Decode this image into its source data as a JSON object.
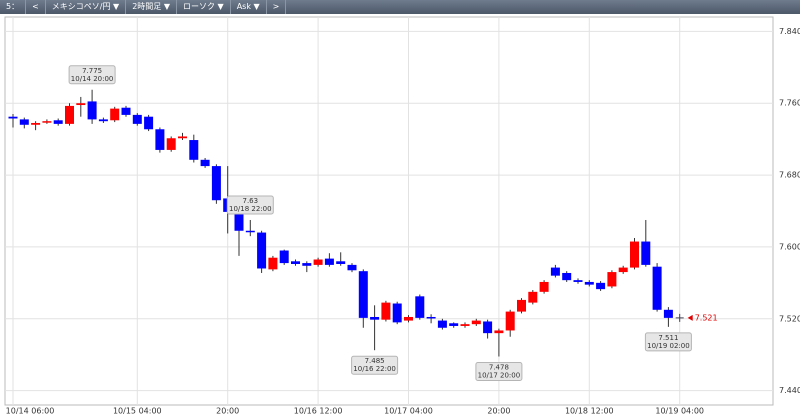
{
  "toolbar": {
    "items": [
      "5：",
      "<",
      "メキシコペソ/円 ▼",
      "2時間足 ▼",
      "ローソク ▼",
      "Ask ▼",
      ">"
    ]
  },
  "chart_data": {
    "type": "candlestick",
    "categories": [
      "10/14 06:00",
      null,
      null,
      null,
      null,
      null,
      null,
      null,
      null,
      null,
      null,
      "10/15 04:00",
      null,
      null,
      null,
      null,
      null,
      null,
      null,
      "20:00",
      null,
      null,
      null,
      null,
      null,
      null,
      null,
      "10/16 12:00",
      null,
      null,
      null,
      null,
      null,
      null,
      null,
      "10/17 04:00",
      null,
      null,
      null,
      null,
      null,
      null,
      null,
      "20:00",
      null,
      null,
      null,
      null,
      null,
      null,
      null,
      "10/18 12:00",
      null,
      null,
      null,
      null,
      null,
      null,
      null,
      "10/19 04:00"
    ],
    "open": [
      7.745,
      7.742,
      7.736,
      7.739,
      7.741,
      7.737,
      7.758,
      7.762,
      7.742,
      7.741,
      7.755,
      7.747,
      7.745,
      7.731,
      7.708,
      7.721,
      7.719,
      7.697,
      7.69,
      7.654,
      7.638,
      7.618,
      7.616,
      7.575,
      7.596,
      7.584,
      7.582,
      7.58,
      7.587,
      7.584,
      7.58,
      7.573,
      7.522,
      7.519,
      7.537,
      7.518,
      7.545,
      7.522,
      7.518,
      7.515,
      7.512,
      7.514,
      7.517,
      7.504,
      7.507,
      7.528,
      7.538,
      7.55,
      7.577,
      7.571,
      7.563,
      7.561,
      7.56,
      7.556,
      7.572,
      7.577,
      7.606,
      7.578,
      7.53,
      null
    ],
    "high": [
      7.748,
      7.744,
      7.74,
      7.742,
      7.743,
      7.76,
      7.767,
      7.775,
      7.744,
      7.756,
      7.757,
      7.749,
      7.747,
      7.733,
      7.723,
      7.727,
      7.725,
      7.699,
      7.692,
      7.69,
      7.644,
      7.63,
      7.618,
      7.59,
      7.597,
      7.586,
      7.584,
      7.588,
      7.593,
      7.594,
      7.582,
      7.575,
      7.535,
      7.54,
      7.539,
      7.524,
      7.547,
      7.525,
      7.52,
      7.516,
      7.516,
      7.52,
      7.519,
      7.509,
      7.53,
      7.543,
      7.552,
      7.563,
      7.58,
      7.573,
      7.565,
      7.563,
      7.562,
      7.574,
      7.579,
      7.61,
      7.63,
      7.582,
      7.533,
      null
    ],
    "low": [
      7.733,
      7.732,
      7.73,
      7.737,
      7.735,
      7.735,
      7.745,
      7.737,
      7.738,
      7.739,
      7.745,
      7.735,
      7.729,
      7.705,
      7.706,
      7.719,
      7.694,
      7.688,
      7.648,
      7.615,
      7.59,
      7.612,
      7.571,
      7.573,
      7.58,
      7.579,
      7.572,
      7.578,
      7.578,
      7.579,
      7.572,
      7.51,
      7.485,
      7.517,
      7.514,
      7.516,
      7.519,
      7.515,
      7.508,
      7.51,
      7.51,
      7.512,
      7.498,
      7.478,
      7.5,
      7.526,
      7.536,
      7.548,
      7.566,
      7.561,
      7.559,
      7.556,
      7.551,
      7.554,
      7.57,
      7.575,
      7.578,
      7.528,
      7.511,
      null
    ],
    "close": [
      7.743,
      7.736,
      7.738,
      7.74,
      7.737,
      7.757,
      7.76,
      7.742,
      7.74,
      7.754,
      7.747,
      7.737,
      7.731,
      7.708,
      7.721,
      7.723,
      7.697,
      7.69,
      7.652,
      7.639,
      7.618,
      7.617,
      7.576,
      7.588,
      7.582,
      7.581,
      7.579,
      7.586,
      7.58,
      7.581,
      7.574,
      7.521,
      7.519,
      7.538,
      7.516,
      7.522,
      7.521,
      7.521,
      7.51,
      7.512,
      7.514,
      7.518,
      7.504,
      7.507,
      7.528,
      7.541,
      7.55,
      7.561,
      7.568,
      7.563,
      7.561,
      7.558,
      7.553,
      7.572,
      7.577,
      7.606,
      7.58,
      7.53,
      7.521,
      null
    ],
    "up_color": "#ff0000",
    "down_color": "#0000ff",
    "wick_color": "#333333",
    "ylim": [
      7.424,
      7.856
    ],
    "yticks": [
      {
        "value": 7.44,
        "label": "7.440"
      },
      {
        "value": 7.52,
        "label": "7.520"
      },
      {
        "value": 7.6,
        "label": "7.600"
      },
      {
        "value": 7.68,
        "label": "7.680"
      },
      {
        "value": 7.76,
        "label": "7.760"
      },
      {
        "value": 7.84,
        "label": "7.840"
      }
    ],
    "grid": true,
    "last_price": 7.521,
    "last_price_color": "#e00000",
    "annotations": [
      {
        "anchor": "high",
        "value": 7.775,
        "label": "10/14 20:00"
      },
      {
        "anchor": "low",
        "value": 7.485,
        "label": "10/16 22:00"
      },
      {
        "anchor": "low",
        "value": 7.478,
        "label": "10/17 20:00"
      },
      {
        "anchor": "high",
        "value": 7.63,
        "label": "10/18 22:00"
      },
      {
        "anchor": "low",
        "value": 7.511,
        "label": "10/19 02:00"
      }
    ]
  }
}
